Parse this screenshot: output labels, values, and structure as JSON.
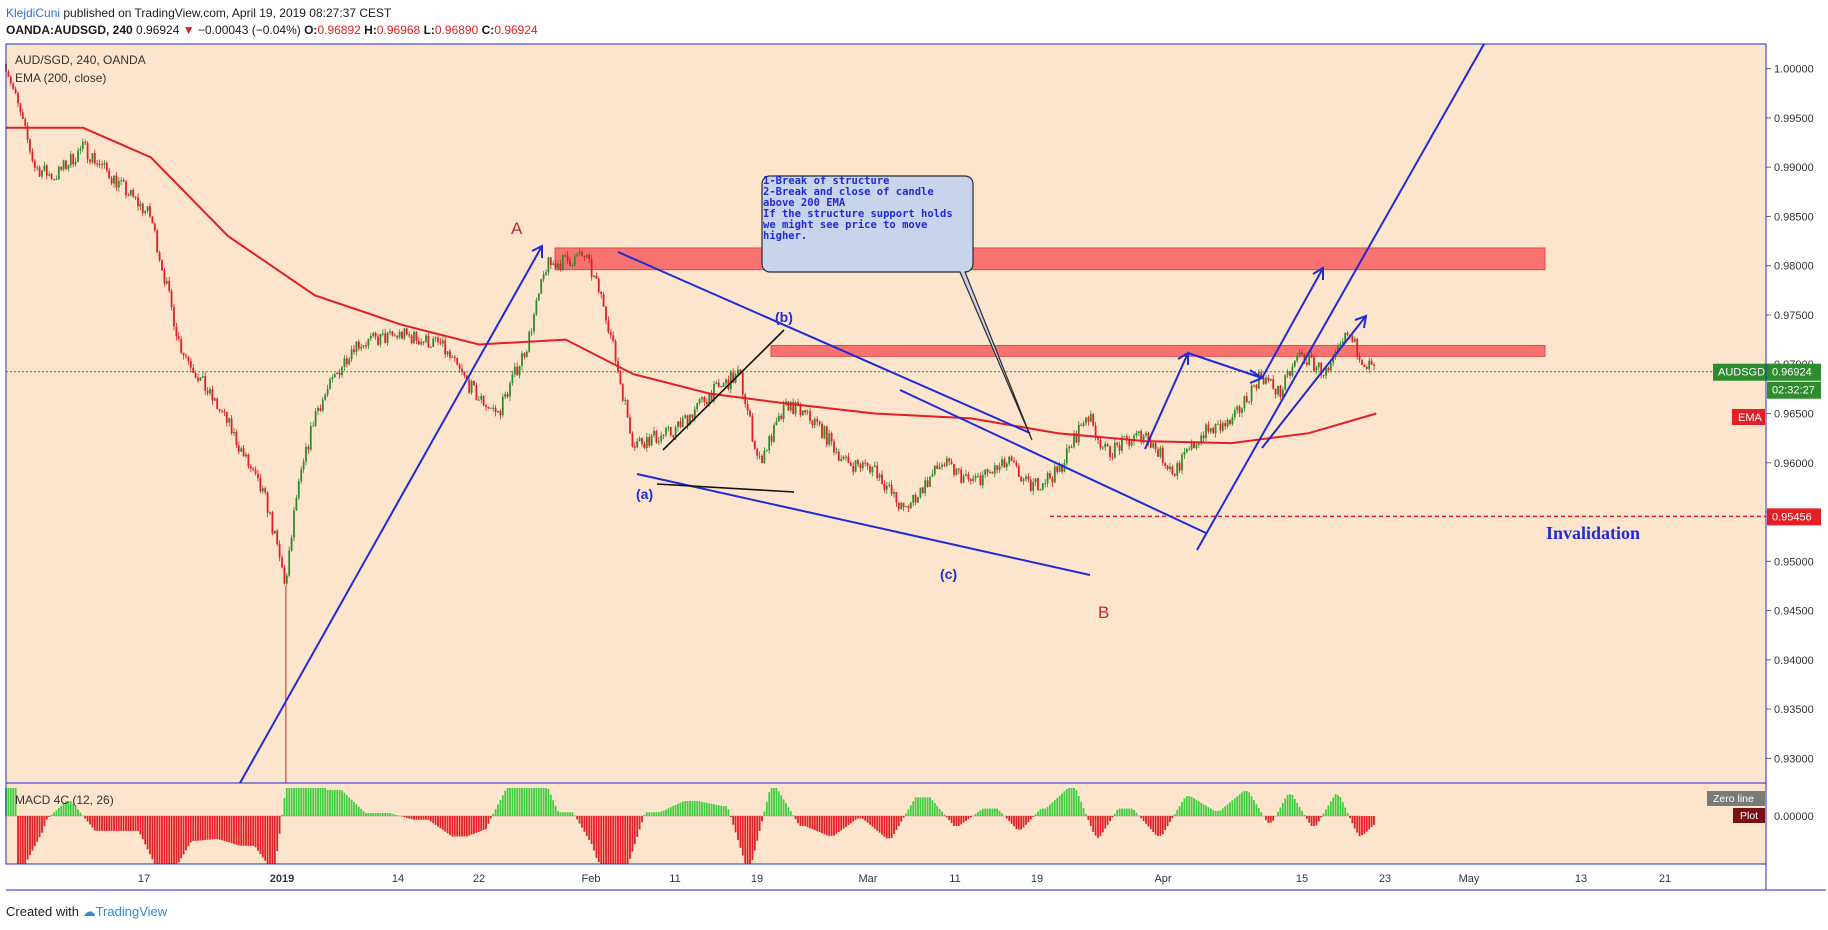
{
  "header": {
    "author": "KlejdiCuni",
    "published": " published on TradingView.com, April 19, 2019 08:27:37 CEST",
    "symbol": "OANDA:AUDSGD, 240",
    "last": "0.96924",
    "change": "−0.00043 (−0.04%)",
    "o_label": "O:",
    "o_value": "0.96892",
    "h_label": "H:",
    "h_value": "0.96968",
    "l_label": "L:",
    "l_value": "0.96890",
    "c_label": "C:",
    "c_value": "0.96924"
  },
  "legend": {
    "pair": "AUD/SGD, 240, OANDA",
    "ema": "EMA (200, close)",
    "macd": "MACD 4C (12, 26)"
  },
  "badges": {
    "price_symbol": "AUDSGD",
    "price_value": "0.96924",
    "countdown": "02:32:27",
    "ema": "EMA",
    "invalidation_value": "0.95456",
    "zero_line": "Zero line",
    "plot": "Plot"
  },
  "annotations": {
    "A": "A",
    "B": "B",
    "a": "(a)",
    "b": "(b)",
    "c": "(c)",
    "invalidation": "Invalidation",
    "note_lines": [
      "1-Break of structure",
      "2-Break and close of candle",
      "above 200 EMA",
      "",
      "If the structure support holds",
      "we might see price to move",
      "higher."
    ]
  },
  "footer": {
    "created_with": "Created with ",
    "brand": "TradingView"
  },
  "colors": {
    "background": "#fde5cd",
    "bull": "#2e8b2e",
    "bear": "#e31e24",
    "ema": "#e31e24",
    "trendlines": "#1f2bd6",
    "zone": "#f75e5e",
    "frame": "#1f2bd6"
  },
  "chart_data": {
    "type": "candlestick",
    "price_axis_ticks": [
      "1.00000",
      "0.99500",
      "0.99000",
      "0.98500",
      "0.98000",
      "0.97500",
      "0.97000",
      "0.96500",
      "0.96000",
      "0.95500",
      "0.95000",
      "0.94500",
      "0.94000",
      "0.93500",
      "0.93000"
    ],
    "ylim": [
      0.9275,
      1.0025
    ],
    "macd_axis_ticks": [
      "0.00000"
    ],
    "time_axis_ticks": [
      "17",
      "2019",
      "14",
      "22",
      "Feb",
      "11",
      "19",
      "Mar",
      "11",
      "19",
      "Apr",
      "15",
      "23",
      "May",
      "13",
      "21"
    ],
    "last_price": 0.96924,
    "invalidation_level": 0.95456,
    "resistance_zones": [
      [
        0.9796,
        0.9818
      ],
      [
        0.9708,
        0.9719
      ]
    ],
    "close_path": [
      {
        "t": "Dec 05",
        "v": 1.0005
      },
      {
        "t": "Dec 08",
        "v": 0.99
      },
      {
        "t": "Dec 10",
        "v": 0.989
      },
      {
        "t": "Dec 13",
        "v": 0.992
      },
      {
        "t": "Dec 17",
        "v": 0.988
      },
      {
        "t": "Dec 20",
        "v": 0.985
      },
      {
        "t": "Dec 23",
        "v": 0.972
      },
      {
        "t": "Dec 26",
        "v": 0.967
      },
      {
        "t": "Dec 28",
        "v": 0.964
      },
      {
        "t": "Jan 01",
        "v": 0.956
      },
      {
        "t": "Jan 03",
        "v": 0.9475
      },
      {
        "t": "Jan 04",
        "v": 0.956
      },
      {
        "t": "Jan 06",
        "v": 0.965
      },
      {
        "t": "Jan 10",
        "v": 0.972
      },
      {
        "t": "Jan 15",
        "v": 0.973
      },
      {
        "t": "Jan 19",
        "v": 0.972
      },
      {
        "t": "Jan 23",
        "v": 0.9665
      },
      {
        "t": "Jan 25",
        "v": 0.965
      },
      {
        "t": "Jan 28",
        "v": 0.972
      },
      {
        "t": "Jan 30",
        "v": 0.98
      },
      {
        "t": "Feb 03",
        "v": 0.981
      },
      {
        "t": "Feb 05",
        "v": 0.976
      },
      {
        "t": "Feb 08",
        "v": 0.962
      },
      {
        "t": "Feb 12",
        "v": 0.963
      },
      {
        "t": "Feb 16",
        "v": 0.967
      },
      {
        "t": "Feb 19",
        "v": 0.969
      },
      {
        "t": "Feb 21",
        "v": 0.96
      },
      {
        "t": "Feb 24",
        "v": 0.966
      },
      {
        "t": "Feb 27",
        "v": 0.964
      },
      {
        "t": "Mar 02",
        "v": 0.96
      },
      {
        "t": "Mar 05",
        "v": 0.9595
      },
      {
        "t": "Mar 08",
        "v": 0.955
      },
      {
        "t": "Mar 12",
        "v": 0.96
      },
      {
        "t": "Mar 15",
        "v": 0.958
      },
      {
        "t": "Mar 19",
        "v": 0.96
      },
      {
        "t": "Mar 21",
        "v": 0.9575
      },
      {
        "t": "Mar 24",
        "v": 0.959
      },
      {
        "t": "Mar 27",
        "v": 0.965
      },
      {
        "t": "Mar 29",
        "v": 0.961
      },
      {
        "t": "Apr 02",
        "v": 0.963
      },
      {
        "t": "Apr 05",
        "v": 0.959
      },
      {
        "t": "Apr 08",
        "v": 0.963
      },
      {
        "t": "Apr 11",
        "v": 0.964
      },
      {
        "t": "Apr 14",
        "v": 0.969
      },
      {
        "t": "Apr 16",
        "v": 0.967
      },
      {
        "t": "Apr 18",
        "v": 0.971
      },
      {
        "t": "Apr 21",
        "v": 0.969
      },
      {
        "t": "Apr 23",
        "v": 0.973
      },
      {
        "t": "Apr 25",
        "v": 0.97
      },
      {
        "t": "Apr 26",
        "v": 0.96924
      }
    ],
    "ema_path": [
      {
        "t": "Dec 05",
        "v": 0.994
      },
      {
        "t": "Dec 13",
        "v": 0.994
      },
      {
        "t": "Dec 20",
        "v": 0.991
      },
      {
        "t": "Dec 28",
        "v": 0.983
      },
      {
        "t": "Jan 06",
        "v": 0.977
      },
      {
        "t": "Jan 15",
        "v": 0.974
      },
      {
        "t": "Jan 23",
        "v": 0.972
      },
      {
        "t": "Feb 01",
        "v": 0.9725
      },
      {
        "t": "Feb 08",
        "v": 0.969
      },
      {
        "t": "Feb 16",
        "v": 0.967
      },
      {
        "t": "Feb 24",
        "v": 0.966
      },
      {
        "t": "Mar 05",
        "v": 0.965
      },
      {
        "t": "Mar 15",
        "v": 0.9645
      },
      {
        "t": "Mar 24",
        "v": 0.963
      },
      {
        "t": "Apr 02",
        "v": 0.9622
      },
      {
        "t": "Apr 11",
        "v": 0.962
      },
      {
        "t": "Apr 19",
        "v": 0.963
      },
      {
        "t": "Apr 26",
        "v": 0.965
      }
    ]
  }
}
